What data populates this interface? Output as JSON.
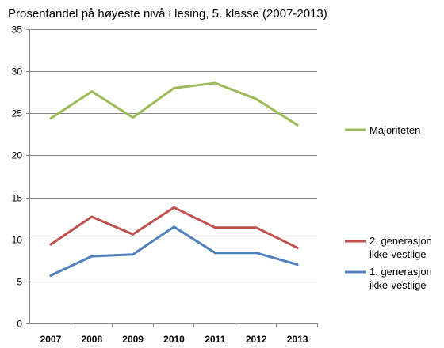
{
  "chart_data": {
    "type": "line",
    "title": "Prosentandel på høyeste nivå i lesing, 5. klasse (2007-2013)",
    "xlabel": "",
    "ylabel": "",
    "categories": [
      "2007",
      "2008",
      "2009",
      "2010",
      "2011",
      "2012",
      "2013"
    ],
    "ylim": [
      0,
      35
    ],
    "yticks": [
      0,
      5,
      10,
      15,
      20,
      25,
      30,
      35
    ],
    "grid": true,
    "legend_position": "right",
    "series": [
      {
        "name": "Majoriteten",
        "color": "#9bbb59",
        "values": [
          24.4,
          27.6,
          24.5,
          28.0,
          28.6,
          26.7,
          23.6
        ]
      },
      {
        "name": "2. generasjon ikke-vestlige",
        "legend_lines": [
          "2. generasjon",
          "ikke-vestlige"
        ],
        "color": "#c0504d",
        "values": [
          9.4,
          12.7,
          10.6,
          13.8,
          11.4,
          11.4,
          9.0
        ]
      },
      {
        "name": "1. generasjon ikke-vestlige",
        "legend_lines": [
          "1. generasjon",
          "ikke-vestlige"
        ],
        "color": "#4f81bd",
        "values": [
          5.7,
          8.0,
          8.2,
          11.5,
          8.4,
          8.4,
          7.0
        ]
      }
    ]
  }
}
